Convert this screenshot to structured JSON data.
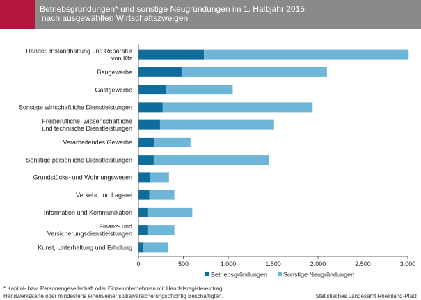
{
  "header": {
    "title_line1": "Betriebsgründungen* und sonstige Neugründungen im 1. Halbjahr 2015",
    "title_line2": "nach ausgewählten Wirtschaftszweigen"
  },
  "footnote": {
    "line1": "* Kapital- bzw. Personengesellschaft oder Einzelunternehmen mit Handelsregistereintrag,",
    "line2": "Handwerkskarte oder mindestens einem/einer sozialversicherungspflichtig Beschäftigten."
  },
  "source": "Statistisches Landesamt Rheinland-Pfalz",
  "colors": {
    "accent": "#b5163b",
    "header_bg": "#8a8a8a",
    "series_1": "#0e6d9c",
    "series_2": "#6eb6d8"
  },
  "chart_data": {
    "type": "bar",
    "orientation": "horizontal",
    "stacked": true,
    "categories": [
      [
        "Handel; Instandhaltung und Reparatur",
        "von Kfz"
      ],
      [
        "Baugewerbe"
      ],
      [
        "Gastgewerbe"
      ],
      [
        "Sonstige wirtschaftliche Dienstleistungen"
      ],
      [
        "Freiberufliche, wissenschaftliche",
        "und technische Dienstleistungen"
      ],
      [
        "Verarbeitendes Gewerbe"
      ],
      [
        "Sonstige persönliche Dienstleistungen"
      ],
      [
        "Grundstücks- und Wohnungswesen"
      ],
      [
        "Verkehr und Lagerei"
      ],
      [
        "Information und Kommunikation"
      ],
      [
        "Finanz- und",
        "Versicherungsdienstleistungen"
      ],
      [
        "Kunst, Unterhaltung und Erholung"
      ]
    ],
    "series": [
      {
        "name": "Betriebsgründungen",
        "color": "#0e6d9c",
        "values": [
          730,
          490,
          310,
          270,
          240,
          180,
          170,
          130,
          120,
          100,
          100,
          50
        ]
      },
      {
        "name": "Sonstige Neugründungen",
        "color": "#6eb6d8",
        "values": [
          2280,
          1610,
          740,
          1670,
          1270,
          400,
          1280,
          210,
          280,
          500,
          300,
          280
        ]
      }
    ],
    "xlim": [
      0,
      3000
    ],
    "xticks": [
      0,
      500,
      1000,
      1500,
      2000,
      2500,
      3000
    ],
    "xtick_labels": [
      "0",
      "500",
      "1.000",
      "1.500",
      "2.000",
      "2.500",
      "3.000"
    ],
    "legend_position": "bottom",
    "grid": false
  }
}
